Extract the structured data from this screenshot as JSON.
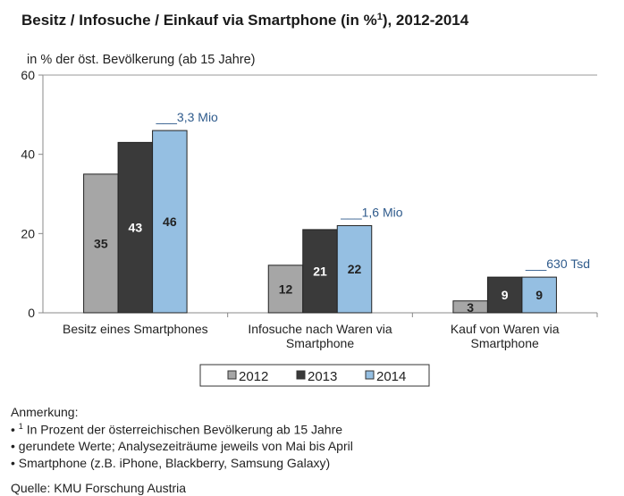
{
  "chart_data": {
    "type": "bar",
    "title": "Besitz / Infosuche / Einkauf via Smartphone (in %",
    "title_sup": "1",
    "title_end": "), 2012-2014",
    "ylabel": "in % der öst. Bevölkerung (ab 15 Jahre)",
    "ylim": [
      0,
      60
    ],
    "yticks": [
      "0",
      "20",
      "40",
      "60"
    ],
    "categories": [
      [
        "Besitz eines Smartphones"
      ],
      [
        "Infosuche nach Waren via",
        "Smartphone"
      ],
      [
        "Kauf von Waren via",
        "Smartphone"
      ]
    ],
    "series": [
      {
        "name": "2012",
        "color": "#a6a6a6",
        "label_color": "#222222",
        "values": [
          35,
          12,
          3
        ]
      },
      {
        "name": "2013",
        "color": "#3a3a3a",
        "label_color": "#ffffff",
        "values": [
          43,
          21,
          9
        ]
      },
      {
        "name": "2014",
        "color": "#95bfe2",
        "label_color": "#222222",
        "values": [
          46,
          22,
          9
        ]
      }
    ],
    "annotations": [
      "___3,3 Mio",
      "___1,6 Mio",
      "___630 Tsd"
    ],
    "annotation_color": "#2f5b8c",
    "legend_position": "bottom",
    "grid": false
  },
  "notes": {
    "heading": "Anmerkung:",
    "items": [
      {
        "sup": "1",
        "text": " In Prozent der österreichischen Bevölkerung ab 15 Jahre"
      },
      {
        "sup": "",
        "text": "gerundete Werte; Analysezeiträume jeweils von Mai bis April"
      },
      {
        "sup": "",
        "text": "Smartphone (z.B. iPhone, Blackberry, Samsung Galaxy)"
      }
    ],
    "source": "Quelle: KMU Forschung Austria"
  }
}
